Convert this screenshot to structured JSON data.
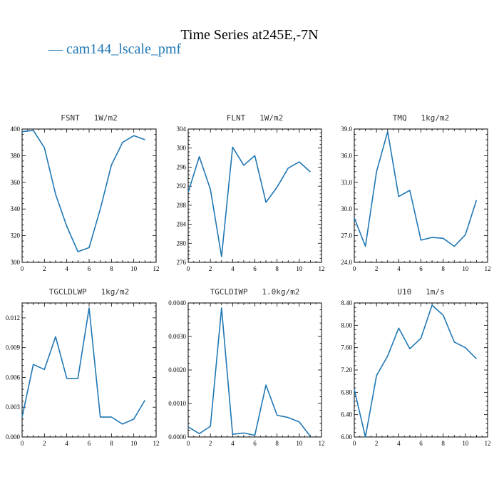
{
  "figure": {
    "title": "Time Series at245E,-7N",
    "legend_label": "— cam144_lscale_pmf",
    "series_color": "#1f77b4"
  },
  "chart_data": [
    {
      "type": "line",
      "title": "FSNT   1W/m2",
      "x": [
        0,
        1,
        2,
        3,
        4,
        5,
        6,
        7,
        8,
        9,
        10,
        11
      ],
      "values": [
        398,
        399,
        386,
        351,
        327,
        308,
        311,
        340,
        373,
        390,
        395,
        392
      ],
      "xlim": [
        0,
        12
      ],
      "ylim": [
        300,
        400
      ],
      "xticks": [
        0,
        2,
        4,
        6,
        8,
        10,
        12
      ],
      "yticks": [
        "300",
        "320",
        "340",
        "360",
        "380",
        "400"
      ]
    },
    {
      "type": "line",
      "title": "FLNT   1W/m2",
      "x": [
        0,
        1,
        2,
        3,
        4,
        5,
        6,
        7,
        8,
        9,
        10,
        11
      ],
      "values": [
        290.7,
        298.2,
        291.3,
        277.2,
        300.2,
        296.4,
        298.4,
        288.6,
        291.8,
        295.8,
        297.1,
        295.0
      ],
      "xlim": [
        0,
        12
      ],
      "ylim": [
        276,
        304
      ],
      "xticks": [
        0,
        2,
        4,
        6,
        8,
        10,
        12
      ],
      "yticks": [
        "276",
        "280",
        "284",
        "288",
        "292",
        "296",
        "300",
        "304"
      ]
    },
    {
      "type": "line",
      "title": "TMQ   1kg/m2",
      "x": [
        0,
        1,
        2,
        3,
        4,
        5,
        6,
        7,
        8,
        9,
        10,
        11
      ],
      "values": [
        29.0,
        25.8,
        34.2,
        38.7,
        31.4,
        32.1,
        26.5,
        26.8,
        26.7,
        25.8,
        27.1,
        31.0
      ],
      "xlim": [
        0,
        12
      ],
      "ylim": [
        24,
        39
      ],
      "xticks": [
        0,
        2,
        4,
        6,
        8,
        10,
        12
      ],
      "yticks": [
        "24.0",
        "27.0",
        "30.0",
        "33.0",
        "36.0",
        "39.0"
      ]
    },
    {
      "type": "line",
      "title": "TGCLDLWP   1kg/m2",
      "x": [
        0,
        1,
        2,
        3,
        4,
        5,
        6,
        7,
        8,
        9,
        10,
        11
      ],
      "values": [
        0.002,
        0.0073,
        0.0068,
        0.0101,
        0.0059,
        0.0059,
        0.013,
        0.002,
        0.002,
        0.0013,
        0.0018,
        0.0037
      ],
      "xlim": [
        0,
        12
      ],
      "ylim": [
        0,
        0.0135
      ],
      "xticks": [
        0,
        2,
        4,
        6,
        8,
        10,
        12
      ],
      "yticks": [
        "0.000",
        "0.003",
        "0.006",
        "0.009",
        "0.012"
      ]
    },
    {
      "type": "line",
      "title": "TGCLDIWP   1.0kg/m2",
      "x": [
        0,
        1,
        2,
        3,
        4,
        5,
        6,
        7,
        8,
        9,
        10,
        11
      ],
      "values": [
        0.0003,
        0.0001,
        0.00032,
        0.00385,
        8e-05,
        0.00012,
        5e-05,
        0.00155,
        0.00065,
        0.00058,
        0.00045,
        2e-05
      ],
      "xlim": [
        0,
        12
      ],
      "ylim": [
        0,
        0.004
      ],
      "xticks": [
        0,
        2,
        4,
        6,
        8,
        10,
        12
      ],
      "yticks": [
        "0.0000",
        "0.0010",
        "0.0020",
        "0.0030",
        "0.0040"
      ]
    },
    {
      "type": "line",
      "title": "U10   1m/s",
      "x": [
        0,
        1,
        2,
        3,
        4,
        5,
        6,
        7,
        8,
        9,
        10,
        11
      ],
      "values": [
        6.85,
        6.0,
        7.1,
        7.45,
        7.95,
        7.58,
        7.77,
        8.36,
        8.18,
        7.7,
        7.6,
        7.4
      ],
      "xlim": [
        0,
        12
      ],
      "ylim": [
        6.0,
        8.4
      ],
      "xticks": [
        0,
        2,
        4,
        6,
        8,
        10,
        12
      ],
      "yticks": [
        "6.00",
        "6.40",
        "6.80",
        "7.20",
        "7.60",
        "8.00",
        "8.40"
      ]
    }
  ]
}
